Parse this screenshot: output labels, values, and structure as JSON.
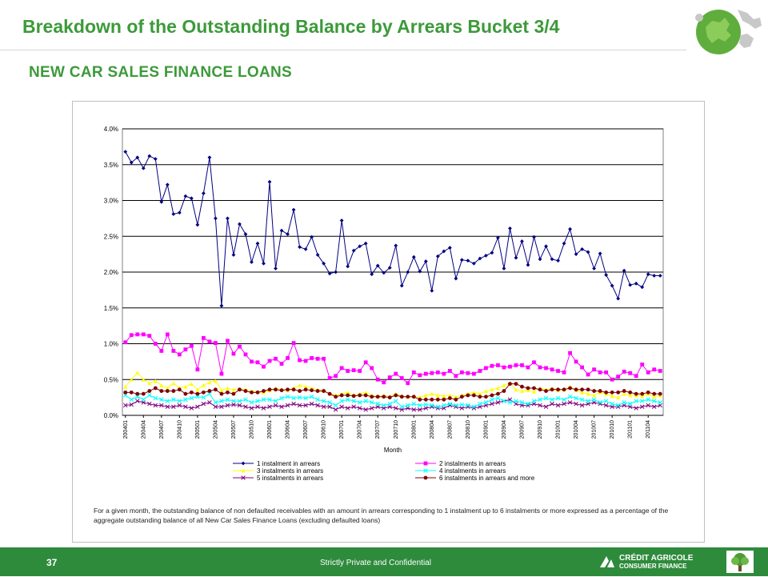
{
  "page": {
    "title": "Breakdown of the Outstanding Balance by Arrears Bucket 3/4",
    "subtitle": "NEW CAR SALES FINANCE LOANS",
    "page_number": "37",
    "confidential": "Strictly Private and Confidential",
    "brand_name": "CRÉDIT AGRICOLE",
    "brand_sub": "CONSUMER FINANCE",
    "logo_icon": "europe-map-icon",
    "brand_icon": "credit-agricole-logo-icon",
    "tree_icon": "tree-icon"
  },
  "footnote": "For a given month, the outstanding balance of non defaulted receivables with an amount in arrears corresponding to 1 instalment up to 6 instalments or more expressed as a percentage of the aggregate outstanding balance of all New Car Sales Finance Loans (excluding defaulted loans)",
  "colors": {
    "title_green": "#3c9a3a",
    "footer_green": "#2e8b3c"
  },
  "chart_data": {
    "type": "line",
    "xlabel": "Month",
    "ylabel": "",
    "ylim": [
      0,
      4.0
    ],
    "yticks": [
      "0.0%",
      "0.5%",
      "1.0%",
      "1.5%",
      "2.0%",
      "2.5%",
      "3.0%",
      "3.5%",
      "4.0%"
    ],
    "x_tick_labels": [
      "200401",
      "200404",
      "200407",
      "200410",
      "200501",
      "200504",
      "200507",
      "200510",
      "200601",
      "200604",
      "200607",
      "200610",
      "200701",
      "200704",
      "200707",
      "200710",
      "200801",
      "200804",
      "200807",
      "200810",
      "200901",
      "200904",
      "200907",
      "200910",
      "201001",
      "201004",
      "201007",
      "201010",
      "201101",
      "201104"
    ],
    "x_start": "2004-01",
    "grid": "horizontal",
    "legend_position": "bottom",
    "series": [
      {
        "name": "1 instalment in arrears",
        "color": "#000080",
        "marker": "diamond",
        "values": [
          3.68,
          3.53,
          3.6,
          3.45,
          3.62,
          3.58,
          2.98,
          3.22,
          2.81,
          2.83,
          3.06,
          3.03,
          2.66,
          3.1,
          3.6,
          2.75,
          1.53,
          2.75,
          2.24,
          2.67,
          2.53,
          2.14,
          2.4,
          2.12,
          3.26,
          2.05,
          2.58,
          2.53,
          2.87,
          2.35,
          2.32,
          2.49,
          2.24,
          2.12,
          1.98,
          2.0,
          2.72,
          2.08,
          2.3,
          2.36,
          2.4,
          1.97,
          2.09,
          1.99,
          2.06,
          2.37,
          1.81,
          2.0,
          2.21,
          2.01,
          2.15,
          1.74,
          2.22,
          2.29,
          2.34,
          1.91,
          2.17,
          2.16,
          2.12,
          2.19,
          2.23,
          2.27,
          2.48,
          2.05,
          2.61,
          2.2,
          2.43,
          2.1,
          2.49,
          2.18,
          2.36,
          2.18,
          2.16,
          2.4,
          2.6,
          2.25,
          2.32,
          2.28,
          2.05,
          2.26,
          1.96,
          1.81,
          1.63,
          2.02,
          1.82,
          1.84,
          1.79,
          1.97,
          1.95,
          1.95
        ]
      },
      {
        "name": "2 instalments in arrears",
        "color": "#ff00ff",
        "marker": "square",
        "values": [
          1.02,
          1.12,
          1.13,
          1.13,
          1.11,
          1.0,
          0.9,
          1.13,
          0.9,
          0.85,
          0.92,
          0.97,
          0.64,
          1.08,
          1.03,
          1.01,
          0.58,
          1.04,
          0.86,
          0.96,
          0.85,
          0.75,
          0.74,
          0.68,
          0.76,
          0.79,
          0.72,
          0.8,
          1.01,
          0.77,
          0.76,
          0.8,
          0.79,
          0.79,
          0.52,
          0.55,
          0.66,
          0.62,
          0.63,
          0.62,
          0.74,
          0.66,
          0.5,
          0.46,
          0.53,
          0.58,
          0.52,
          0.45,
          0.6,
          0.56,
          0.58,
          0.59,
          0.6,
          0.58,
          0.62,
          0.55,
          0.6,
          0.59,
          0.58,
          0.62,
          0.66,
          0.69,
          0.7,
          0.67,
          0.68,
          0.7,
          0.7,
          0.67,
          0.74,
          0.67,
          0.66,
          0.64,
          0.62,
          0.6,
          0.87,
          0.75,
          0.67,
          0.57,
          0.64,
          0.6,
          0.6,
          0.5,
          0.54,
          0.61,
          0.59,
          0.55,
          0.71,
          0.6,
          0.64,
          0.62
        ]
      },
      {
        "name": "3 instalments in arrears",
        "color": "#ffff00",
        "marker": "triangle",
        "values": [
          0.4,
          0.5,
          0.6,
          0.5,
          0.45,
          0.48,
          0.42,
          0.38,
          0.45,
          0.38,
          0.4,
          0.44,
          0.36,
          0.42,
          0.46,
          0.48,
          0.35,
          0.38,
          0.36,
          0.37,
          0.36,
          0.34,
          0.33,
          0.32,
          0.35,
          0.38,
          0.36,
          0.35,
          0.38,
          0.42,
          0.4,
          0.38,
          0.36,
          0.35,
          0.3,
          0.28,
          0.3,
          0.32,
          0.28,
          0.3,
          0.32,
          0.28,
          0.26,
          0.28,
          0.26,
          0.3,
          0.27,
          0.26,
          0.26,
          0.25,
          0.28,
          0.3,
          0.28,
          0.27,
          0.28,
          0.26,
          0.28,
          0.3,
          0.32,
          0.3,
          0.34,
          0.36,
          0.38,
          0.42,
          0.45,
          0.36,
          0.34,
          0.35,
          0.33,
          0.38,
          0.36,
          0.38,
          0.35,
          0.36,
          0.4,
          0.35,
          0.32,
          0.3,
          0.28,
          0.32,
          0.3,
          0.27,
          0.25,
          0.3,
          0.28,
          0.28,
          0.27,
          0.3,
          0.26,
          0.28
        ]
      },
      {
        "name": "4 instalments in arrears",
        "color": "#00ffff",
        "marker": "x",
        "values": [
          0.28,
          0.22,
          0.26,
          0.22,
          0.28,
          0.24,
          0.22,
          0.2,
          0.22,
          0.2,
          0.22,
          0.24,
          0.26,
          0.25,
          0.3,
          0.18,
          0.2,
          0.22,
          0.2,
          0.2,
          0.22,
          0.18,
          0.2,
          0.22,
          0.22,
          0.2,
          0.24,
          0.26,
          0.24,
          0.25,
          0.24,
          0.26,
          0.22,
          0.2,
          0.18,
          0.14,
          0.2,
          0.22,
          0.2,
          0.18,
          0.2,
          0.18,
          0.16,
          0.14,
          0.16,
          0.2,
          0.12,
          0.14,
          0.16,
          0.14,
          0.15,
          0.14,
          0.12,
          0.14,
          0.16,
          0.14,
          0.15,
          0.14,
          0.12,
          0.16,
          0.18,
          0.22,
          0.24,
          0.2,
          0.18,
          0.2,
          0.18,
          0.16,
          0.2,
          0.22,
          0.24,
          0.22,
          0.24,
          0.22,
          0.26,
          0.24,
          0.22,
          0.2,
          0.22,
          0.18,
          0.2,
          0.16,
          0.14,
          0.18,
          0.16,
          0.2,
          0.2,
          0.22,
          0.2,
          0.18
        ]
      },
      {
        "name": "5 instalments in arrears",
        "color": "#800080",
        "marker": "x",
        "values": [
          0.14,
          0.15,
          0.2,
          0.18,
          0.16,
          0.14,
          0.14,
          0.12,
          0.12,
          0.14,
          0.12,
          0.1,
          0.12,
          0.16,
          0.18,
          0.12,
          0.12,
          0.14,
          0.15,
          0.14,
          0.12,
          0.1,
          0.12,
          0.1,
          0.12,
          0.14,
          0.12,
          0.14,
          0.16,
          0.14,
          0.14,
          0.16,
          0.14,
          0.12,
          0.12,
          0.08,
          0.12,
          0.1,
          0.12,
          0.1,
          0.08,
          0.1,
          0.12,
          0.1,
          0.12,
          0.1,
          0.08,
          0.1,
          0.08,
          0.08,
          0.1,
          0.12,
          0.1,
          0.1,
          0.14,
          0.12,
          0.1,
          0.12,
          0.1,
          0.12,
          0.14,
          0.16,
          0.18,
          0.2,
          0.22,
          0.16,
          0.14,
          0.14,
          0.16,
          0.14,
          0.12,
          0.16,
          0.14,
          0.16,
          0.18,
          0.16,
          0.14,
          0.16,
          0.18,
          0.16,
          0.14,
          0.12,
          0.12,
          0.14,
          0.12,
          0.1,
          0.12,
          0.14,
          0.12,
          0.14
        ]
      },
      {
        "name": "6 instalments in arrears and more",
        "color": "#800000",
        "marker": "circle",
        "values": [
          0.32,
          0.32,
          0.3,
          0.3,
          0.34,
          0.38,
          0.34,
          0.34,
          0.34,
          0.36,
          0.3,
          0.32,
          0.3,
          0.32,
          0.34,
          0.36,
          0.3,
          0.32,
          0.3,
          0.36,
          0.34,
          0.32,
          0.32,
          0.34,
          0.36,
          0.36,
          0.35,
          0.36,
          0.36,
          0.34,
          0.36,
          0.35,
          0.34,
          0.34,
          0.3,
          0.26,
          0.28,
          0.28,
          0.27,
          0.28,
          0.28,
          0.26,
          0.26,
          0.26,
          0.25,
          0.28,
          0.26,
          0.26,
          0.26,
          0.22,
          0.22,
          0.22,
          0.22,
          0.22,
          0.24,
          0.22,
          0.26,
          0.28,
          0.28,
          0.26,
          0.26,
          0.28,
          0.3,
          0.34,
          0.44,
          0.44,
          0.4,
          0.38,
          0.38,
          0.36,
          0.34,
          0.36,
          0.36,
          0.36,
          0.38,
          0.36,
          0.36,
          0.36,
          0.34,
          0.34,
          0.32,
          0.32,
          0.32,
          0.34,
          0.32,
          0.3,
          0.3,
          0.32,
          0.3,
          0.3
        ]
      }
    ]
  }
}
